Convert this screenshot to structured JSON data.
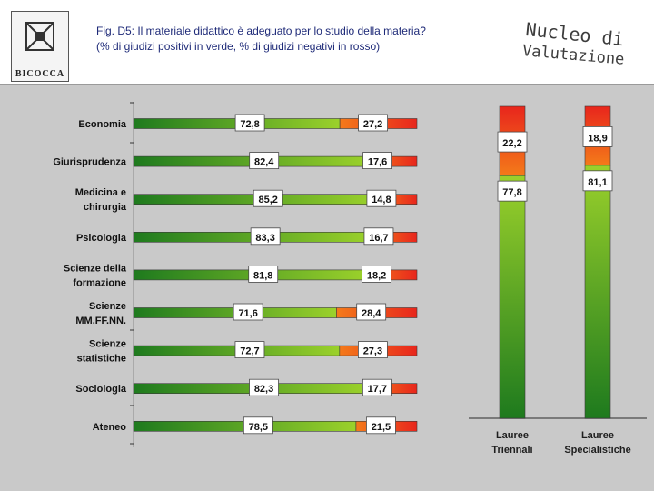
{
  "header": {
    "logo_text": "BICOCCA",
    "title_line1": "Fig. D5: Il materiale didattico è adeguato per lo studio della materia?",
    "title_line2": "(% di giudizi positivi in verde, % di giudizi negativi in rosso)",
    "nv_line1": "Nucleo di",
    "nv_line2": "Valutazione"
  },
  "colors": {
    "positive_dark": "#1e7a1e",
    "positive_light": "#9bd12b",
    "negative_orange": "#f47a1a",
    "negative_red": "#e8261c"
  },
  "chart_data": [
    {
      "type": "bar",
      "orientation": "horizontal",
      "stacked": true,
      "categories": [
        [
          "Economia"
        ],
        [
          "Giurisprudenza"
        ],
        [
          "Medicina e",
          "chirurgia"
        ],
        [
          "Psicologia"
        ],
        [
          "Scienze della",
          "formazione"
        ],
        [
          "Scienze",
          "MM.FF.NN."
        ],
        [
          "Scienze",
          "statistiche"
        ],
        [
          "Sociologia"
        ],
        [
          "Ateneo"
        ]
      ],
      "series": [
        {
          "values": [
            72.8,
            82.4,
            85.2,
            83.3,
            81.8,
            71.6,
            72.7,
            82.3,
            78.5
          ]
        },
        {
          "values": [
            27.2,
            17.6,
            14.8,
            16.7,
            18.2,
            28.4,
            27.3,
            17.7,
            21.5
          ]
        }
      ],
      "labels_pos": [
        "72,8",
        "82,4",
        "85,2",
        "83,3",
        "81,8",
        "71,6",
        "72,7",
        "82,3",
        "78,5"
      ],
      "labels_neg": [
        "27,2",
        "17,6",
        "14,8",
        "16,7",
        "18,2",
        "28,4",
        "27,3",
        "17,7",
        "21,5"
      ],
      "xlim": [
        0,
        100
      ]
    },
    {
      "type": "bar",
      "orientation": "vertical",
      "stacked": true,
      "categories": [
        [
          "Lauree",
          "Triennali"
        ],
        [
          "Lauree",
          "Specialistiche"
        ]
      ],
      "series": [
        {
          "values": [
            77.8,
            81.1
          ]
        },
        {
          "values": [
            22.2,
            18.9
          ]
        }
      ],
      "labels_pos": [
        "77,8",
        "81,1"
      ],
      "labels_neg": [
        "22,2",
        "18,9"
      ],
      "ylim": [
        0,
        100
      ]
    }
  ]
}
